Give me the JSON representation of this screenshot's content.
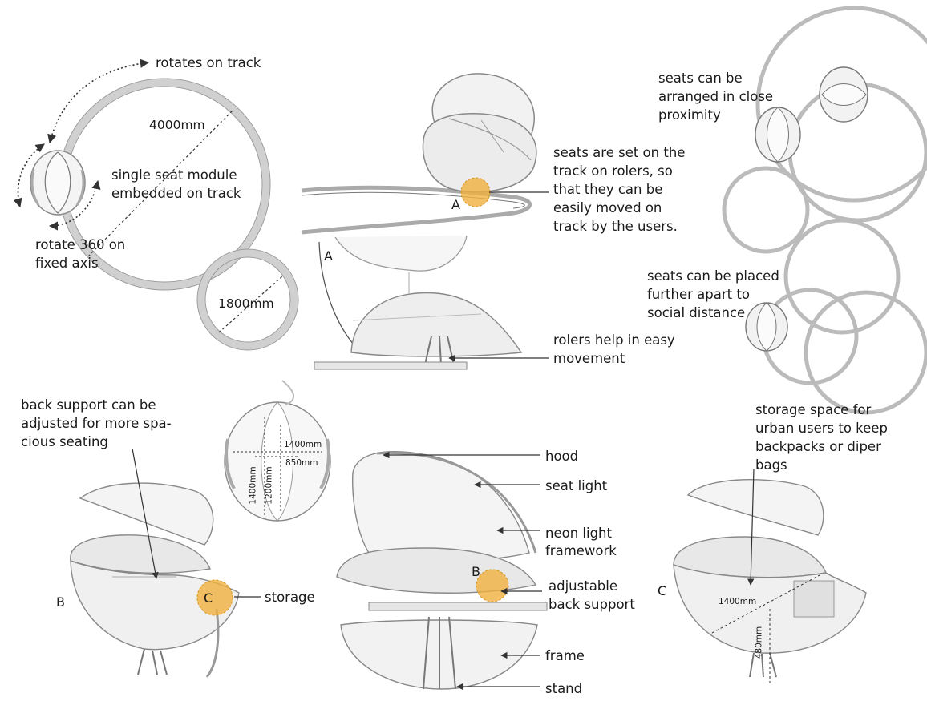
{
  "colors": {
    "track": "#d4d4d4",
    "track_edge": "#9a9a9a",
    "highlight": "#f0b040",
    "line": "#2a2a2a",
    "shade": "#c8c8c8"
  },
  "top_left": {
    "rotates_on_track": "rotates on track",
    "dim_large": "4000mm",
    "single_seat_line1": "single seat module",
    "single_seat_line2": "embedded on track",
    "rotate_line1": "rotate 360 on",
    "rotate_line2": "fixed axis",
    "dim_small": "1800mm"
  },
  "top_center": {
    "marker_a": "A",
    "marker_a2": "A",
    "note_line1": "seats are set on the",
    "note_line2": "track on rolers, so",
    "note_line3": "that they can be",
    "note_line4": "easily moved on",
    "note_line5": "track by the users.",
    "rolers_line1": "rolers help in easy",
    "rolers_line2": "movement"
  },
  "top_right": {
    "close_line1": "seats can be",
    "close_line2": "arranged in close",
    "close_line3": "proximity",
    "apart_line1": "seats can be placed",
    "apart_line2": "further apart to",
    "apart_line3": "social distance"
  },
  "bottom_left": {
    "back_line1": "back support can be",
    "back_line2": "adjusted for more spa-",
    "back_line3": "cious seating",
    "marker_b": "B",
    "marker_c": "C",
    "storage": "storage"
  },
  "dims_sphere": {
    "w1": "1400mm",
    "w2": "850mm",
    "h1": "1400mm",
    "h2": "1200mm"
  },
  "bottom_center": {
    "hood": "hood",
    "seat_light": "seat light",
    "neon_line1": "neon light",
    "neon_line2": "framework",
    "marker_b": "B",
    "adjustable_line1": "adjustable",
    "adjustable_line2": "back support",
    "frame": "frame",
    "stand": "stand"
  },
  "bottom_right": {
    "storage_line1": "storage space for",
    "storage_line2": "urban users to keep",
    "storage_line3": "backpacks or diper",
    "storage_line4": "bags",
    "marker_c": "C",
    "dim_w": "1400mm",
    "dim_h": "480mm"
  }
}
